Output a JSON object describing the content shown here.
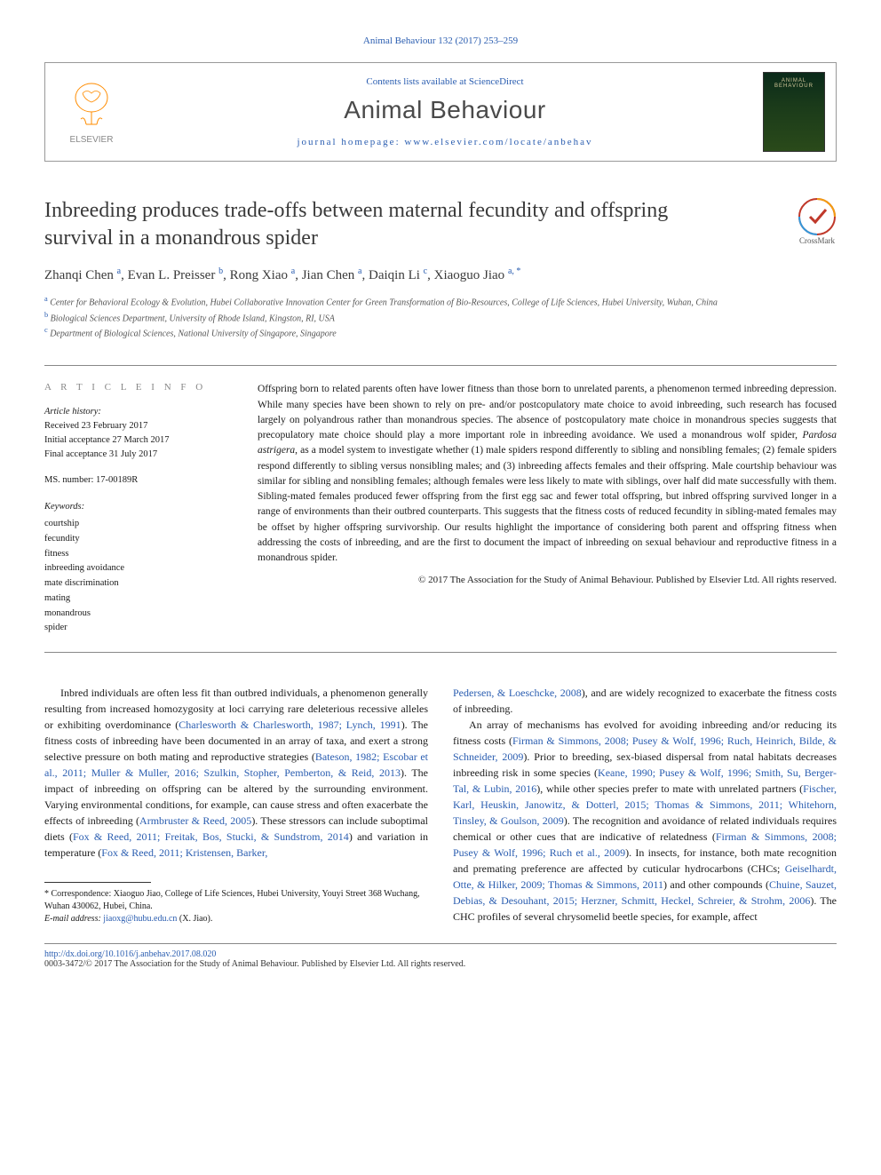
{
  "topLink": "Animal Behaviour 132 (2017) 253–259",
  "header": {
    "contentsLine_pre": "Contents lists available at ",
    "contentsLine_link": "ScienceDirect",
    "journalName": "Animal Behaviour",
    "homepage_pre": "journal homepage: ",
    "homepage_link": "www.elsevier.com/locate/anbehav",
    "publisherText": "ELSEVIER",
    "coverText": "ANIMAL BEHAVIOUR"
  },
  "crossmark": "CrossMark",
  "title": "Inbreeding produces trade-offs between maternal fecundity and offspring survival in a monandrous spider",
  "authors": [
    {
      "name": "Zhanqi Chen",
      "sup": "a"
    },
    {
      "name": "Evan L. Preisser",
      "sup": "b"
    },
    {
      "name": "Rong Xiao",
      "sup": "a"
    },
    {
      "name": "Jian Chen",
      "sup": "a"
    },
    {
      "name": "Daiqin Li",
      "sup": "c"
    },
    {
      "name": "Xiaoguo Jiao",
      "sup": "a, *"
    }
  ],
  "affiliations": [
    {
      "sup": "a",
      "text": "Center for Behavioral Ecology & Evolution, Hubei Collaborative Innovation Center for Green Transformation of Bio-Resources, College of Life Sciences, Hubei University, Wuhan, China"
    },
    {
      "sup": "b",
      "text": "Biological Sciences Department, University of Rhode Island, Kingston, RI, USA"
    },
    {
      "sup": "c",
      "text": "Department of Biological Sciences, National University of Singapore, Singapore"
    }
  ],
  "articleInfo": {
    "header": "A R T I C L E  I N F O",
    "historyLabel": "Article history:",
    "received": "Received 23 February 2017",
    "initialAcceptance": "Initial acceptance 27 March 2017",
    "finalAcceptance": "Final acceptance 31 July 2017",
    "msNumber": "MS. number: 17-00189R",
    "keywordsLabel": "Keywords:",
    "keywords": [
      "courtship",
      "fecundity",
      "fitness",
      "inbreeding avoidance",
      "mate discrimination",
      "mating",
      "monandrous",
      "spider"
    ]
  },
  "abstract": {
    "text": "Offspring born to related parents often have lower fitness than those born to unrelated parents, a phenomenon termed inbreeding depression. While many species have been shown to rely on pre- and/or postcopulatory mate choice to avoid inbreeding, such research has focused largely on polyandrous rather than monandrous species. The absence of postcopulatory mate choice in monandrous species suggests that precopulatory mate choice should play a more important role in inbreeding avoidance. We used a monandrous wolf spider, Pardosa astrigera, as a model system to investigate whether (1) male spiders respond differently to sibling and nonsibling females; (2) female spiders respond differently to sibling versus nonsibling males; and (3) inbreeding affects females and their offspring. Male courtship behaviour was similar for sibling and nonsibling females; although females were less likely to mate with siblings, over half did mate successfully with them. Sibling-mated females produced fewer offspring from the first egg sac and fewer total offspring, but inbred offspring survived longer in a range of environments than their outbred counterparts. This suggests that the fitness costs of reduced fecundity in sibling-mated females may be offset by higher offspring survivorship. Our results highlight the importance of considering both parent and offspring fitness when addressing the costs of inbreeding, and are the first to document the impact of inbreeding on sexual behaviour and reproductive fitness in a monandrous spider.",
    "copyright": "© 2017 The Association for the Study of Animal Behaviour. Published by Elsevier Ltd. All rights reserved."
  },
  "body": {
    "col1": {
      "p1_a": "Inbred individuals are often less fit than outbred individuals, a phenomenon generally resulting from increased homozygosity at loci carrying rare deleterious recessive alleles or exhibiting overdominance (",
      "p1_l1": "Charlesworth & Charlesworth, 1987; Lynch, 1991",
      "p1_b": "). The fitness costs of inbreeding have been documented in an array of taxa, and exert a strong selective pressure on both mating and reproductive strategies (",
      "p1_l2": "Bateson, 1982; Escobar et al., 2011; Muller & Muller, 2016; Szulkin, Stopher, Pemberton, & Reid, 2013",
      "p1_c": "). The impact of inbreeding on offspring can be altered by the surrounding environment. Varying environmental conditions, for example, can cause stress and often exacerbate the effects of inbreeding (",
      "p1_l3": "Armbruster & Reed, 2005",
      "p1_d": "). These stressors can include suboptimal diets (",
      "p1_l4": "Fox & Reed, 2011; Freitak, Bos, Stucki, & Sundstrom, 2014",
      "p1_e": ") and variation in temperature (",
      "p1_l5": "Fox & Reed, 2011; Kristensen, Barker,"
    },
    "col2": {
      "p1_l1": "Pedersen, & Loeschcke, 2008",
      "p1_a": "), and are widely recognized to exacerbate the fitness costs of inbreeding.",
      "p2_a": "An array of mechanisms has evolved for avoiding inbreeding and/or reducing its fitness costs (",
      "p2_l1": "Firman & Simmons, 2008; Pusey & Wolf, 1996; Ruch, Heinrich, Bilde, & Schneider, 2009",
      "p2_b": "). Prior to breeding, sex-biased dispersal from natal habitats decreases inbreeding risk in some species (",
      "p2_l2": "Keane, 1990; Pusey & Wolf, 1996; Smith, Su, Berger-Tal, & Lubin, 2016",
      "p2_c": "), while other species prefer to mate with unrelated partners (",
      "p2_l3": "Fischer, Karl, Heuskin, Janowitz, & Dotterl, 2015; Thomas & Simmons, 2011; Whitehorn, Tinsley, & Goulson, 2009",
      "p2_d": "). The recognition and avoidance of related individuals requires chemical or other cues that are indicative of relatedness (",
      "p2_l4": "Firman & Simmons, 2008; Pusey & Wolf, 1996; Ruch et al., 2009",
      "p2_e": "). In insects, for instance, both mate recognition and premating preference are affected by cuticular hydrocarbons (CHCs; ",
      "p2_l5": "Geiselhardt, Otte, & Hilker, 2009; Thomas & Simmons, 2011",
      "p2_f": ") and other compounds (",
      "p2_l6": "Chuine, Sauzet, Debias, & Desouhant, 2015; Herzner, Schmitt, Heckel, Schreier, & Strohm, 2006",
      "p2_g": "). The CHC profiles of several chrysomelid beetle species, for example, affect"
    }
  },
  "footnote": {
    "corr_pre": "* Correspondence: Xiaoguo Jiao, College of Life Sciences, Hubei University, Youyi Street 368 Wuchang, Wuhan 430062, Hubei, China.",
    "email_label": "E-mail address: ",
    "email_link": "jiaoxg@hubu.edu.cn",
    "email_suffix": " (X.  Jiao)."
  },
  "bottom": {
    "doi": "http://dx.doi.org/10.1016/j.anbehav.2017.08.020",
    "issn": "0003-3472/© 2017 The Association for the Study of Animal Behaviour. Published by Elsevier Ltd. All rights reserved."
  },
  "colors": {
    "link": "#2a5db0",
    "text": "#1a1a1a",
    "muted": "#555555",
    "border": "#888888"
  }
}
